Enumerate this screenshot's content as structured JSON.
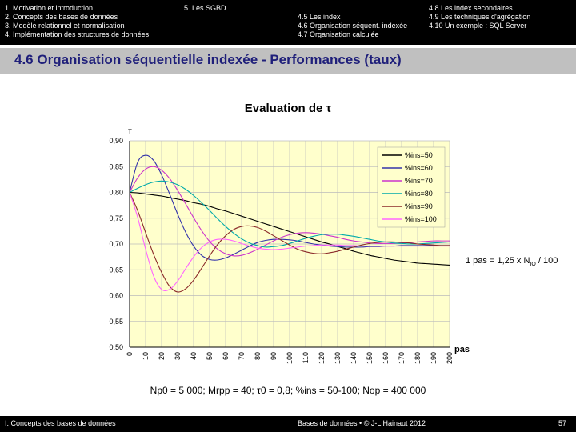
{
  "header": {
    "left_items": [
      "1. Motivation et introduction",
      "2. Concepts des bases de données",
      "3. Modèle relationnel et normalisation",
      "4. Implémentation des structures de données"
    ],
    "middle_item": "5. Les SGBD",
    "right_rows": [
      [
        "...",
        "4.8 Les index secondaires"
      ],
      [
        "4.5 Les index",
        "4.9 Les techniques d'agrégation"
      ],
      [
        "4.6 Organisation séquent. indexée",
        "4.10 Un exemple : SQL Server"
      ],
      [
        "4.7 Organisation calculée",
        ""
      ]
    ]
  },
  "slide_title": "4.6 Organisation séquentielle indexée - Performances (taux)",
  "chart_heading": "Evaluation de τ",
  "pas_note": "1 pas = 1,25 x N",
  "pas_note_sub": "IO",
  "pas_note_tail": " / 100",
  "params_text": "Np0 = 5 000; Mrpp = 40; τ0 = 0,8; %ins = 50-100; Nop = 400 000",
  "footer": {
    "left": "I. Concepts des bases de données",
    "center": "Bases de données • © J-L Hainaut 2012",
    "page": "57"
  },
  "chart_data": {
    "type": "line",
    "ylabel": "τ",
    "xlabel": "pas",
    "ylim": [
      0.5,
      0.9
    ],
    "xlim": [
      0,
      200
    ],
    "y_ticks": [
      "0,90",
      "0,85",
      "0,80",
      "0,75",
      "0,70",
      "0,65",
      "0,60",
      "0,55",
      "0,50"
    ],
    "x_ticks": [
      "0",
      "10",
      "20",
      "30",
      "40",
      "50",
      "60",
      "70",
      "80",
      "90",
      "100",
      "110",
      "120",
      "130",
      "140",
      "150",
      "160",
      "170",
      "180",
      "190",
      "200"
    ],
    "plot_background": "#ffffcc",
    "grid": true,
    "legend_position": "top-right",
    "x": [
      0,
      5,
      10,
      15,
      20,
      25,
      30,
      35,
      40,
      45,
      50,
      55,
      60,
      65,
      70,
      75,
      80,
      85,
      90,
      95,
      100,
      105,
      110,
      115,
      120,
      125,
      130,
      135,
      140,
      145,
      150,
      155,
      160,
      165,
      170,
      175,
      180,
      185,
      190,
      195,
      200
    ],
    "series": [
      {
        "name": "%ins=50",
        "color": "#000000",
        "values": [
          0.8,
          0.799,
          0.797,
          0.795,
          0.793,
          0.79,
          0.787,
          0.784,
          0.78,
          0.777,
          0.773,
          0.768,
          0.764,
          0.759,
          0.754,
          0.749,
          0.744,
          0.739,
          0.734,
          0.729,
          0.724,
          0.719,
          0.714,
          0.709,
          0.704,
          0.7,
          0.695,
          0.691,
          0.686,
          0.682,
          0.678,
          0.675,
          0.672,
          0.669,
          0.667,
          0.665,
          0.663,
          0.662,
          0.661,
          0.66,
          0.659
        ]
      },
      {
        "name": "%ins=60",
        "color": "#3333aa",
        "values": [
          0.8,
          0.858,
          0.872,
          0.862,
          0.834,
          0.797,
          0.758,
          0.723,
          0.696,
          0.678,
          0.67,
          0.669,
          0.673,
          0.68,
          0.688,
          0.696,
          0.703,
          0.707,
          0.709,
          0.709,
          0.708,
          0.706,
          0.703,
          0.7,
          0.698,
          0.696,
          0.695,
          0.694,
          0.694,
          0.694,
          0.695,
          0.695,
          0.696,
          0.696,
          0.697,
          0.697,
          0.697,
          0.697,
          0.697,
          0.697,
          0.697
        ]
      },
      {
        "name": "%ins=70",
        "color": "#cc33cc",
        "values": [
          0.8,
          0.828,
          0.845,
          0.85,
          0.843,
          0.827,
          0.804,
          0.778,
          0.751,
          0.726,
          0.705,
          0.69,
          0.681,
          0.677,
          0.678,
          0.683,
          0.69,
          0.698,
          0.706,
          0.713,
          0.718,
          0.721,
          0.722,
          0.721,
          0.719,
          0.716,
          0.713,
          0.709,
          0.706,
          0.704,
          0.702,
          0.701,
          0.701,
          0.701,
          0.702,
          0.703,
          0.704,
          0.705,
          0.706,
          0.706,
          0.706
        ]
      },
      {
        "name": "%ins=80",
        "color": "#00aaaa",
        "values": [
          0.8,
          0.808,
          0.815,
          0.82,
          0.822,
          0.82,
          0.815,
          0.806,
          0.794,
          0.78,
          0.765,
          0.749,
          0.734,
          0.721,
          0.71,
          0.702,
          0.697,
          0.694,
          0.695,
          0.697,
          0.701,
          0.706,
          0.711,
          0.715,
          0.718,
          0.719,
          0.719,
          0.717,
          0.715,
          0.712,
          0.709,
          0.706,
          0.704,
          0.702,
          0.701,
          0.7,
          0.7,
          0.701,
          0.702,
          0.703,
          0.704
        ]
      },
      {
        "name": "%ins=90",
        "color": "#8b2a2a",
        "values": [
          0.8,
          0.765,
          0.722,
          0.68,
          0.645,
          0.618,
          0.607,
          0.613,
          0.63,
          0.653,
          0.677,
          0.699,
          0.716,
          0.728,
          0.734,
          0.735,
          0.732,
          0.725,
          0.716,
          0.707,
          0.698,
          0.69,
          0.685,
          0.682,
          0.681,
          0.683,
          0.686,
          0.69,
          0.694,
          0.698,
          0.701,
          0.703,
          0.704,
          0.704,
          0.703,
          0.702,
          0.7,
          0.699,
          0.698,
          0.697,
          0.697
        ]
      },
      {
        "name": "%ins=100",
        "color": "#ff66ff",
        "values": [
          0.8,
          0.752,
          0.69,
          0.638,
          0.612,
          0.612,
          0.628,
          0.652,
          0.675,
          0.693,
          0.704,
          0.709,
          0.709,
          0.706,
          0.701,
          0.696,
          0.692,
          0.69,
          0.689,
          0.69,
          0.692,
          0.694,
          0.696,
          0.697,
          0.698,
          0.698,
          0.698,
          0.697,
          0.697,
          0.696,
          0.696,
          0.696,
          0.696,
          0.696,
          0.696,
          0.696,
          0.696,
          0.696,
          0.696,
          0.696,
          0.696
        ]
      }
    ]
  }
}
